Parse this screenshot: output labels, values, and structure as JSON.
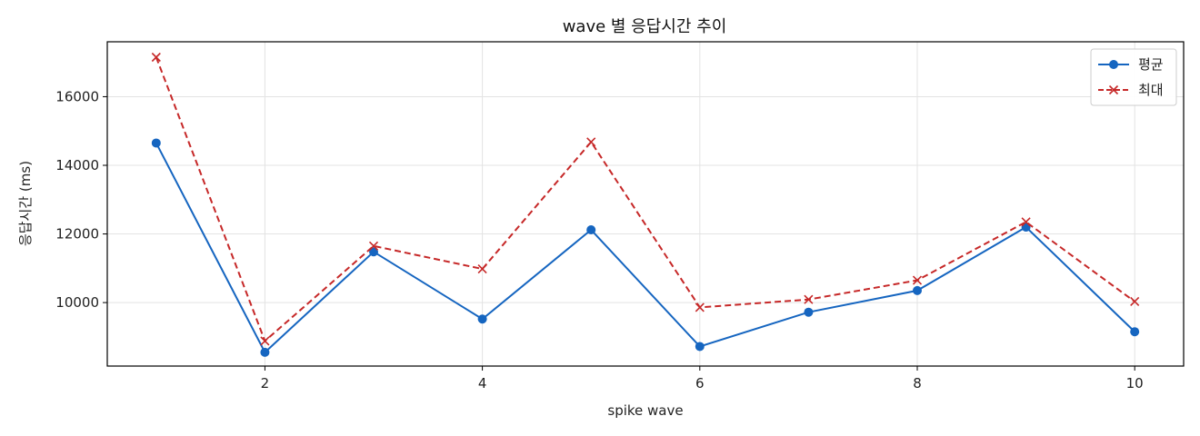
{
  "chart_data": {
    "type": "line",
    "title": "wave 별 응답시간 추이",
    "xlabel": "spike wave",
    "ylabel": "응답시간 (ms)",
    "x": [
      1,
      2,
      3,
      4,
      5,
      6,
      7,
      8,
      9,
      10
    ],
    "xlim": [
      0.55,
      10.45
    ],
    "ylim": [
      8150,
      17600
    ],
    "xticks": [
      2,
      4,
      6,
      8,
      10
    ],
    "yticks": [
      10000,
      12000,
      14000,
      16000
    ],
    "grid": true,
    "legend_position": "top-right",
    "series": [
      {
        "name": "평균",
        "values": [
          14650,
          8550,
          11480,
          9520,
          12120,
          8720,
          9720,
          10350,
          12200,
          9150
        ],
        "color": "#1565c0",
        "line_style": "solid",
        "marker": "circle"
      },
      {
        "name": "최대",
        "values": [
          17150,
          8880,
          11650,
          10980,
          14680,
          9860,
          10090,
          10650,
          12350,
          10030
        ],
        "color": "#c62828",
        "line_style": "dashed",
        "marker": "x"
      }
    ]
  }
}
